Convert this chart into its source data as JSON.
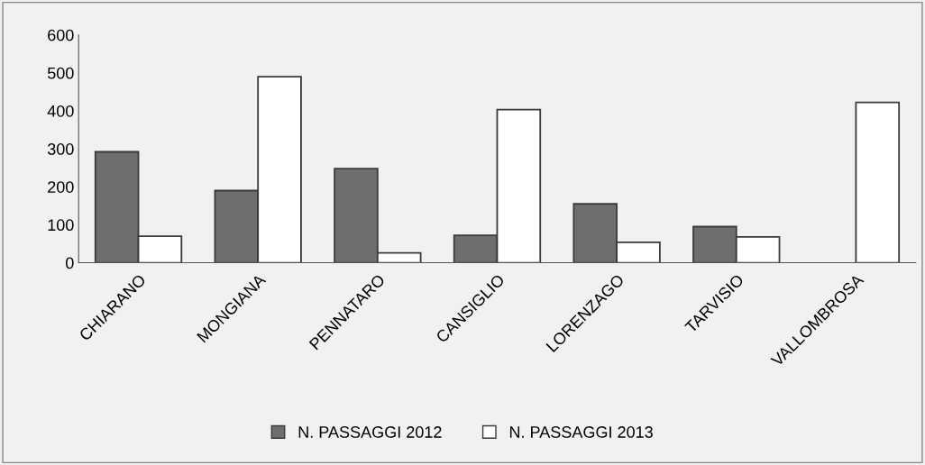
{
  "chart_data": {
    "type": "bar",
    "categories": [
      "CHIARANO",
      "MONGIANA",
      "PENNATARO",
      "CANSIGLIO",
      "LORENZAGO",
      "TARVISIO",
      "VALLOMBROSA"
    ],
    "series": [
      {
        "name": "N. PASSAGGI 2012",
        "color": "#6e6e6e",
        "values": [
          292,
          190,
          248,
          72,
          155,
          95,
          null
        ]
      },
      {
        "name": "N. PASSAGGI 2013",
        "color": "#ffffff",
        "values": [
          70,
          490,
          26,
          403,
          54,
          68,
          422
        ]
      }
    ],
    "ylim": [
      0,
      600
    ],
    "yticks": [
      0,
      100,
      200,
      300,
      400,
      500,
      600
    ],
    "grid": false,
    "legend": "bottom"
  }
}
